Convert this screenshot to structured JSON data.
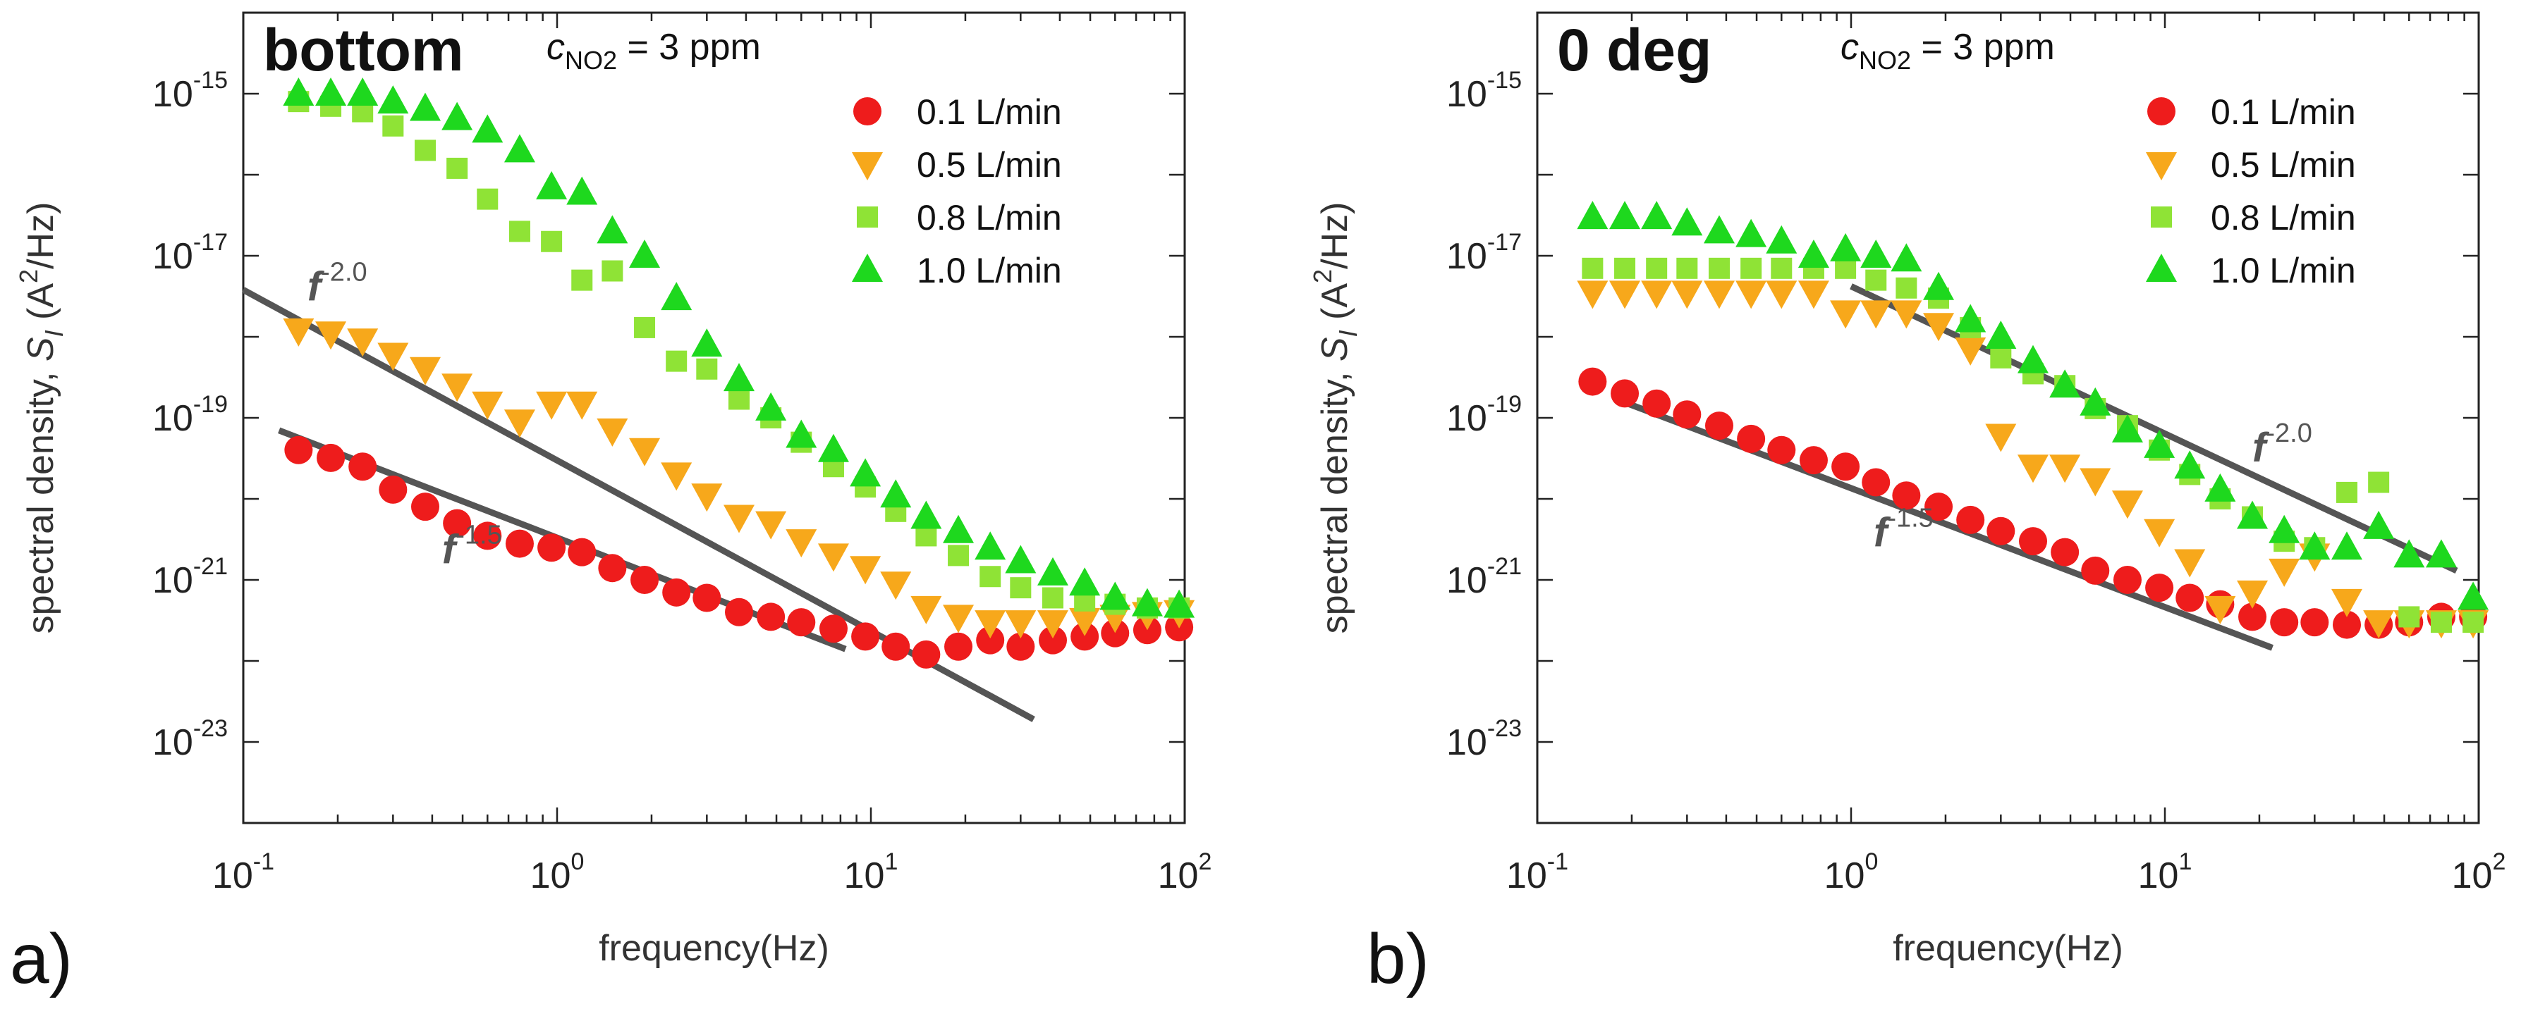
{
  "chart_data": [
    {
      "panel_label": "a)",
      "type": "scatter",
      "title": "bottom",
      "concentration": {
        "symbol": "c",
        "subscript": "NO2",
        "rest": " = 3 ppm"
      },
      "xlabel": "frequency(Hz)",
      "ylabel": {
        "prefix": "spectral density, ",
        "symbol": "S",
        "sub": "I",
        "unit_open": " (A",
        "unit_sup": "2",
        "unit_close": "/Hz)"
      },
      "xscale": "log",
      "yscale": "log",
      "xlim": [
        0.1,
        100
      ],
      "ylim": [
        1e-24,
        1e-14
      ],
      "xticks": [
        {
          "base": "10",
          "exp": "-1",
          "value": 0.1
        },
        {
          "base": "10",
          "exp": "0",
          "value": 1
        },
        {
          "base": "10",
          "exp": "1",
          "value": 10
        },
        {
          "base": "10",
          "exp": "2",
          "value": 100
        }
      ],
      "yticks": [
        {
          "base": "10",
          "exp": "-15",
          "value": 1e-15
        },
        {
          "base": "10",
          "exp": "-17",
          "value": 1e-17
        },
        {
          "base": "10",
          "exp": "-19",
          "value": 1e-19
        },
        {
          "base": "10",
          "exp": "-21",
          "value": 1e-21
        },
        {
          "base": "10",
          "exp": "-23",
          "value": 1e-23
        }
      ],
      "legend_position": "top-right",
      "series": [
        {
          "name": "0.1 L/min",
          "marker": "circle",
          "color": "#ee1c1c",
          "x": [
            0.15,
            0.19,
            0.24,
            0.3,
            0.38,
            0.48,
            0.6,
            0.76,
            0.96,
            1.2,
            1.5,
            1.9,
            2.4,
            3,
            3.8,
            4.8,
            6,
            7.6,
            9.6,
            12,
            15,
            19,
            24,
            30,
            38,
            48,
            60,
            76,
            96
          ],
          "y": [
            4e-20,
            3.2e-20,
            2.5e-20,
            1.3e-20,
            8e-21,
            5e-21,
            3.5e-21,
            2.8e-21,
            2.5e-21,
            2.2e-21,
            1.4e-21,
            1e-21,
            7e-22,
            6e-22,
            4e-22,
            3.5e-22,
            3e-22,
            2.5e-22,
            2e-22,
            1.5e-22,
            1.2e-22,
            1.5e-22,
            1.8e-22,
            1.5e-22,
            1.8e-22,
            2e-22,
            2.2e-22,
            2.4e-22,
            2.6e-22
          ]
        },
        {
          "name": "0.5 L/min",
          "marker": "triangle-down",
          "color": "#f7a81b",
          "x": [
            0.15,
            0.19,
            0.24,
            0.3,
            0.38,
            0.48,
            0.6,
            0.76,
            0.96,
            1.2,
            1.5,
            1.9,
            2.4,
            3,
            3.8,
            4.8,
            6,
            7.6,
            9.6,
            12,
            15,
            19,
            24,
            30,
            38,
            48,
            60,
            76,
            96
          ],
          "y": [
            1.2e-18,
            1.1e-18,
            9e-19,
            6e-19,
            4e-19,
            2.5e-19,
            1.5e-19,
            9e-20,
            1.5e-19,
            1.5e-19,
            7e-20,
            4e-20,
            2e-20,
            1.1e-20,
            6e-21,
            5e-21,
            3e-21,
            2e-21,
            1.4e-21,
            9e-22,
            4.5e-22,
            3.5e-22,
            3e-22,
            3e-22,
            3e-22,
            3.2e-22,
            3.5e-22,
            3.8e-22,
            4e-22
          ]
        },
        {
          "name": "0.8 L/min",
          "marker": "square",
          "color": "#8fe336",
          "x": [
            0.15,
            0.19,
            0.24,
            0.3,
            0.38,
            0.48,
            0.6,
            0.76,
            0.96,
            1.2,
            1.5,
            1.9,
            2.4,
            3,
            3.8,
            4.8,
            6,
            7.6,
            9.6,
            12,
            15,
            19,
            24,
            30,
            38,
            48,
            60,
            76,
            96
          ],
          "y": [
            8e-16,
            7e-16,
            6e-16,
            4e-16,
            2e-16,
            1.2e-16,
            5e-17,
            2e-17,
            1.5e-17,
            5e-18,
            6.5e-18,
            1.3e-18,
            5e-19,
            4e-19,
            1.7e-19,
            1e-19,
            5e-20,
            2.5e-20,
            1.4e-20,
            7e-21,
            3.5e-21,
            2e-21,
            1.1e-21,
            8e-22,
            6e-22,
            5.5e-22,
            5e-22,
            4.5e-22,
            4.5e-22
          ]
        },
        {
          "name": "1.0 L/min",
          "marker": "triangle-up",
          "color": "#1ed81e",
          "x": [
            0.15,
            0.19,
            0.24,
            0.3,
            0.38,
            0.48,
            0.6,
            0.76,
            0.96,
            1.2,
            1.5,
            1.9,
            2.4,
            3,
            3.8,
            4.8,
            6,
            7.6,
            9.6,
            12,
            15,
            19,
            24,
            30,
            38,
            48,
            60,
            76,
            96
          ],
          "y": [
            1e-15,
            1e-15,
            1e-15,
            8e-16,
            6.5e-16,
            5e-16,
            3.5e-16,
            2e-16,
            7e-17,
            6e-17,
            2e-17,
            1e-17,
            3e-18,
            8e-19,
            3e-19,
            1.3e-19,
            6e-20,
            4e-20,
            2e-20,
            1.1e-20,
            6e-21,
            4e-21,
            2.5e-21,
            1.7e-21,
            1.2e-21,
            9e-22,
            6e-22,
            5e-22,
            4.8e-22
          ]
        }
      ],
      "fits": [
        {
          "label_base": "f",
          "label_exp": "-2.0",
          "x": [
            0.1,
            33
          ],
          "y": [
            3.8e-18,
            1.9e-23
          ],
          "label_x": 0.16,
          "label_y": 2.8e-18
        },
        {
          "label_base": "f",
          "label_exp": "-1.5",
          "x": [
            0.13,
            8.3
          ],
          "y": [
            7e-20,
            1.4e-22
          ],
          "label_x": 0.43,
          "label_y": 1.6e-21
        }
      ]
    },
    {
      "panel_label": "b)",
      "type": "scatter",
      "title": "0 deg",
      "concentration": {
        "symbol": "c",
        "subscript": "NO2",
        "rest": " = 3 ppm"
      },
      "xlabel": "frequency(Hz)",
      "ylabel": {
        "prefix": "spectral density, ",
        "symbol": "S",
        "sub": "I",
        "unit_open": " (A",
        "unit_sup": "2",
        "unit_close": "/Hz)"
      },
      "xscale": "log",
      "yscale": "log",
      "xlim": [
        0.1,
        100
      ],
      "ylim": [
        1e-24,
        1e-14
      ],
      "xticks": [
        {
          "base": "10",
          "exp": "-1",
          "value": 0.1
        },
        {
          "base": "10",
          "exp": "0",
          "value": 1
        },
        {
          "base": "10",
          "exp": "1",
          "value": 10
        },
        {
          "base": "10",
          "exp": "2",
          "value": 100
        }
      ],
      "yticks": [
        {
          "base": "10",
          "exp": "-15",
          "value": 1e-15
        },
        {
          "base": "10",
          "exp": "-17",
          "value": 1e-17
        },
        {
          "base": "10",
          "exp": "-19",
          "value": 1e-19
        },
        {
          "base": "10",
          "exp": "-21",
          "value": 1e-21
        },
        {
          "base": "10",
          "exp": "-23",
          "value": 1e-23
        }
      ],
      "legend_position": "top-right",
      "series": [
        {
          "name": "0.1 L/min",
          "marker": "circle",
          "color": "#ee1c1c",
          "x": [
            0.15,
            0.19,
            0.24,
            0.3,
            0.38,
            0.48,
            0.6,
            0.76,
            0.96,
            1.2,
            1.5,
            1.9,
            2.4,
            3,
            3.8,
            4.8,
            6,
            7.6,
            9.6,
            12,
            15,
            19,
            24,
            30,
            38,
            48,
            60,
            76,
            96
          ],
          "y": [
            2.8e-19,
            2e-19,
            1.5e-19,
            1.1e-19,
            8e-20,
            5.5e-20,
            4e-20,
            3e-20,
            2.5e-20,
            1.6e-20,
            1.1e-20,
            8e-21,
            5.5e-21,
            4e-21,
            3e-21,
            2.2e-21,
            1.3e-21,
            1e-21,
            8e-22,
            6e-22,
            5e-22,
            3.5e-22,
            3e-22,
            3e-22,
            2.8e-22,
            2.8e-22,
            3e-22,
            3.5e-22,
            3.5e-22
          ]
        },
        {
          "name": "0.5 L/min",
          "marker": "triangle-down",
          "color": "#f7a81b",
          "x": [
            0.15,
            0.19,
            0.24,
            0.3,
            0.38,
            0.48,
            0.6,
            0.76,
            0.96,
            1.2,
            1.5,
            1.9,
            2.4,
            3,
            3.8,
            4.8,
            6,
            7.6,
            9.6,
            12,
            15,
            19,
            24,
            30,
            38,
            48,
            60,
            76,
            96
          ],
          "y": [
            3.5e-18,
            3.5e-18,
            3.5e-18,
            3.5e-18,
            3.5e-18,
            3.5e-18,
            3.5e-18,
            3.5e-18,
            2e-18,
            2e-18,
            2e-18,
            1.4e-18,
            7e-19,
            6e-20,
            2.5e-20,
            2.5e-20,
            1.7e-20,
            9e-21,
            4e-21,
            1.7e-21,
            4.5e-22,
            7e-22,
            1.3e-21,
            2e-21,
            5.5e-22,
            3e-22,
            3e-22,
            3e-22,
            3e-22
          ]
        },
        {
          "name": "0.8 L/min",
          "marker": "square",
          "color": "#8fe336",
          "x": [
            0.15,
            0.19,
            0.24,
            0.3,
            0.38,
            0.48,
            0.6,
            0.76,
            0.96,
            1.2,
            1.5,
            1.9,
            2.4,
            3,
            3.8,
            4.8,
            6,
            7.6,
            9.6,
            12,
            15,
            19,
            24,
            30,
            38,
            48,
            60,
            76,
            96
          ],
          "y": [
            7e-18,
            7e-18,
            7e-18,
            7e-18,
            7e-18,
            7e-18,
            7e-18,
            7e-18,
            7e-18,
            5e-18,
            4e-18,
            3e-18,
            1.3e-18,
            5.5e-19,
            3.5e-19,
            2.5e-19,
            1.3e-19,
            8e-20,
            4e-20,
            2e-20,
            1e-20,
            6e-21,
            3e-21,
            2.5e-21,
            1.2e-20,
            1.6e-20,
            3.5e-22,
            3e-22,
            3e-22
          ]
        },
        {
          "name": "1.0 L/min",
          "marker": "triangle-up",
          "color": "#1ed81e",
          "x": [
            0.15,
            0.19,
            0.24,
            0.3,
            0.38,
            0.48,
            0.6,
            0.76,
            0.96,
            1.2,
            1.5,
            1.9,
            2.4,
            3,
            3.8,
            4.8,
            6,
            7.6,
            9.6,
            12,
            15,
            19,
            24,
            30,
            38,
            48,
            60,
            76,
            96
          ],
          "y": [
            3e-17,
            3e-17,
            3e-17,
            2.5e-17,
            2e-17,
            1.8e-17,
            1.5e-17,
            1e-17,
            1.2e-17,
            1e-17,
            9e-18,
            4e-18,
            1.6e-18,
            1e-18,
            5e-19,
            2.5e-19,
            1.5e-19,
            7e-20,
            4.5e-20,
            2.5e-20,
            1.3e-20,
            6e-21,
            4e-21,
            2.5e-21,
            2.5e-21,
            4.5e-21,
            2e-21,
            2e-21,
            6e-22
          ]
        }
      ],
      "fits": [
        {
          "label_base": "f",
          "label_exp": "-2.0",
          "x": [
            1.0,
            85
          ],
          "y": [
            4.2e-18,
            1.3e-21
          ],
          "label_x": 19,
          "label_y": 2.9e-20
        },
        {
          "label_base": "f",
          "label_exp": "-1.5",
          "x": [
            0.19,
            22
          ],
          "y": [
            1.55e-19,
            1.45e-22
          ],
          "label_x": 1.18,
          "label_y": 2.6e-21
        }
      ]
    }
  ]
}
